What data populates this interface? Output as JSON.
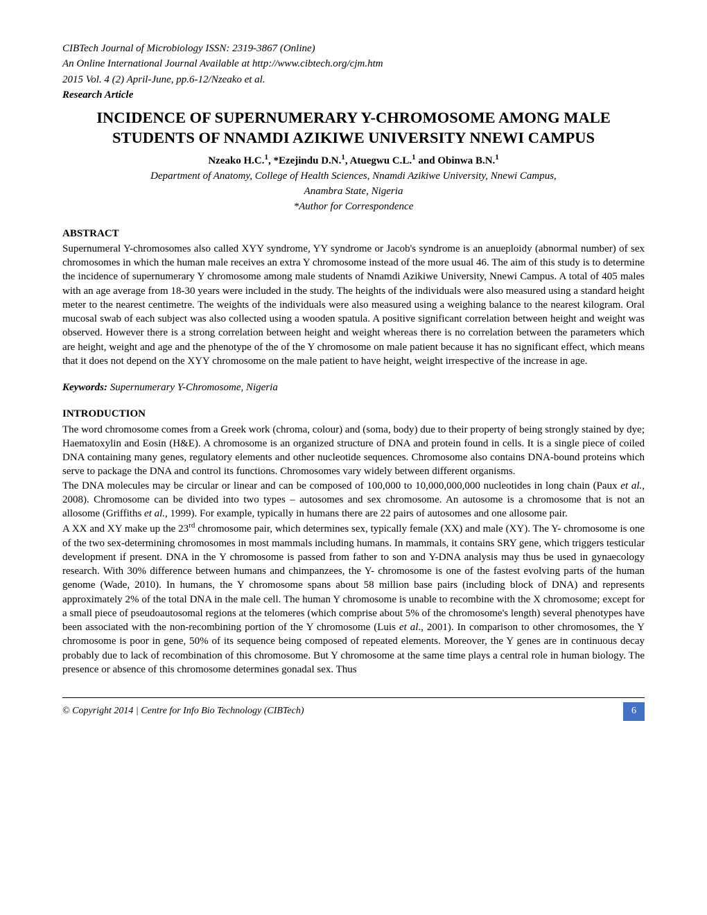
{
  "header": {
    "line1": "CIBTech Journal of Microbiology ISSN: 2319-3867 (Online)",
    "line2": "An Online International Journal Available at http://www.cibtech.org/cjm.htm",
    "line3": "2015 Vol. 4 (2) April-June, pp.6-12/Nzeako et al.",
    "article_type": "Research Article"
  },
  "title": "INCIDENCE OF SUPERNUMERARY Y-CHROMOSOME AMONG MALE STUDENTS OF NNAMDI AZIKIWE UNIVERSITY NNEWI CAMPUS",
  "authors_html": "Nzeako H.C.<sup>1</sup>, *Ezejindu D.N.<sup>1</sup>, Atuegwu C.L.<sup>1</sup> and Obinwa B.N.<sup>1</sup>",
  "affiliation_line1": "Department of Anatomy, College of Health Sciences, Nnamdi Azikiwe University, Nnewi Campus,",
  "affiliation_line2": "Anambra State, Nigeria",
  "correspondence": "*Author for Correspondence",
  "abstract_heading": "ABSTRACT",
  "abstract_text": "Supernumeral Y-chromosomes also called XYY syndrome, YY syndrome or Jacob's syndrome is an anueploidy (abnormal number) of sex chromosomes in which the human male receives an extra Y chromosome instead of the more usual 46. The aim of this study is to determine the incidence of supernumerary Y chromosome among male students of Nnamdi Azikiwe University, Nnewi Campus. A total of 405 males with an age average from 18-30 years were included in the study. The heights of the individuals were also measured using a standard height meter to the nearest centimetre. The weights of the individuals were also measured using a weighing balance to the nearest kilogram. Oral mucosal swab of each subject was also collected using a wooden spatula. A positive significant correlation between height and weight was observed. However there is a strong correlation between height and weight whereas there is no correlation between the parameters which are height, weight and age and the phenotype of the of the Y chromosome on male patient because it has no significant effect, which means that it does not depend on the XYY chromosome on the male patient to have height, weight irrespective of the increase in age.",
  "keywords_label": "Keywords:",
  "keywords_value": " Supernumerary Y-Chromosome, Nigeria",
  "intro_heading": "INTRODUCTION",
  "intro_paragraphs": [
    "The word chromosome comes from a Greek work (chroma, colour) and (soma, body) due to their property of being strongly stained by dye; Haematoxylin and Eosin (H&E). A chromosome is an organized structure of DNA and protein found in cells. It is a single piece of coiled DNA containing many genes, regulatory elements and other nucleotide sequences. Chromosome also contains DNA-bound proteins which serve to package the DNA and control its functions. Chromosomes vary widely between different organisms."
  ],
  "intro_para2_html": "The DNA molecules may be circular or linear and can be composed of 100,000 to 10,000,000,000 nucleotides in long chain (Paux <span class=\"italic\">et al.,</span> 2008). Chromosome can be divided into two types – autosomes and sex chromosome. An autosome is a chromosome that is not an allosome (Griffiths <span class=\"italic\">et al.,</span> 1999). For example, typically in humans there are 22 pairs of autosomes and one allosome pair.",
  "intro_para3_html": "A XX and XY make up the 23<sup>rd</sup> chromosome pair, which determines sex, typically female (XX) and male (XY). The Y- chromosome is one of the two sex-determining chromosomes in most mammals including humans. In mammals, it contains SRY gene, which triggers testicular development if present. DNA in the Y chromosome is passed from father to son and Y-DNA analysis may thus be used in gynaecology research. With 30% difference between humans and chimpanzees, the Y- chromosome is one of the fastest evolving parts of the human genome (Wade, 2010). In humans, the Y chromosome spans about 58 million base pairs (including block of DNA) and represents approximately 2% of the total DNA in the male cell. The human Y chromosome is unable to recombine with the X chromosome; except for a small piece of pseudoautosomal regions at the telomeres (which comprise about 5% of the chromosome's length) several phenotypes have been associated with the non-recombining portion of the Y chromosome (Luis <span class=\"italic\">et al</span>., 2001). In comparison to other chromosomes, the Y chromosome is poor in gene, 50% of its sequence being composed of repeated elements. Moreover, the Y genes are in continuous decay probably due to lack of recombination of this chromosome. But Y chromosome at the same time plays a central role in human biology. The presence or absence of this chromosome determines gonadal sex. Thus",
  "footer": {
    "copyright": "© Copyright 2014 | Centre for Info Bio Technology (CIBTech)",
    "page_number": "6",
    "page_bg_color": "#4472c4"
  }
}
